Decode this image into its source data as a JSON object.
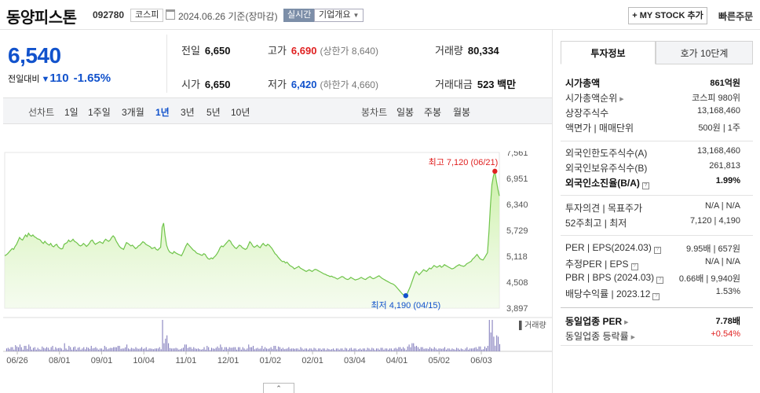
{
  "header": {
    "stock_name": "동양피스톤",
    "stock_code": "092780",
    "market": "코스피",
    "date": "2024.06.26 기준(장마감)",
    "realtime": "실시간",
    "company_overview": "기업개요",
    "mystock_label": "+ MY STOCK 추가",
    "quick_order": "빠른주문"
  },
  "price": {
    "current": "6,540",
    "change_label": "전일대비",
    "change_value": "110",
    "change_pct": "-1.65%",
    "prev_label": "전일",
    "prev": "6,650",
    "high_label": "고가",
    "high": "6,690",
    "upper_limit": "(상한가 8,640)",
    "volume_label": "거래량",
    "volume": "80,334",
    "open_label": "시가",
    "open": "6,650",
    "low_label": "저가",
    "low": "6,420",
    "lower_limit": "(하한가 4,660)",
    "amount_label": "거래대금",
    "amount": "523 백만"
  },
  "period_tabs": {
    "line_label": "선차트",
    "items": [
      "1일",
      "1주일",
      "3개월",
      "1년",
      "3년",
      "5년",
      "10년"
    ],
    "selected": "1년",
    "candle_label": "봉차트",
    "candle_items": [
      "일봉",
      "주봉",
      "월봉"
    ]
  },
  "chart_data": {
    "type": "area",
    "y_ticks": [
      "7,561",
      "6,951",
      "6,340",
      "5,729",
      "5,118",
      "4,508",
      "3,897"
    ],
    "ylim": [
      3897,
      7561
    ],
    "x_ticks": [
      "06/26",
      "08/01",
      "09/01",
      "10/04",
      "11/01",
      "12/01",
      "01/02",
      "02/01",
      "03/04",
      "04/01",
      "05/02",
      "06/03"
    ],
    "high_annotation": "최고 7,120 (06/21)",
    "low_annotation": "최저 4,190 (04/15)",
    "high_value": 7120,
    "low_value": 4190,
    "volume_label": "거래량",
    "values": [
      5130,
      5150,
      5180,
      5220,
      5260,
      5300,
      5280,
      5350,
      5400,
      5480,
      5560,
      5520,
      5500,
      5560,
      5620,
      5580,
      5660,
      5610,
      5590,
      5620,
      5580,
      5560,
      5530,
      5520,
      5500,
      5450,
      5420,
      5470,
      5430,
      5400,
      5380,
      5420,
      5360,
      5340,
      5380,
      5400,
      5340,
      5310,
      5290,
      5300,
      5400,
      5420,
      5440,
      5500,
      5460,
      5480,
      5520,
      5470,
      5450,
      5420,
      5380,
      5360,
      5380,
      5420,
      5390,
      5350,
      5380,
      5420,
      5480,
      5500,
      5440,
      5400,
      5420,
      5440,
      5460,
      5440,
      5420,
      5480,
      5520,
      5490,
      5470,
      5500,
      5560,
      5600,
      5560,
      5480,
      5420,
      5360,
      5320,
      5300,
      5280,
      5360,
      5440,
      5420,
      5390,
      5360,
      5380,
      5340,
      5300,
      5320,
      5360,
      5380,
      5420,
      5460,
      5440,
      5400,
      5380,
      5360,
      5340,
      5300,
      5310,
      5330,
      5280,
      5260,
      5300,
      5330,
      5800,
      5900,
      5600,
      5380,
      5280,
      5220,
      5200,
      5180,
      5230,
      5200,
      5180,
      5160,
      5150,
      5130,
      5200,
      5280,
      5360,
      5420,
      5380,
      5340,
      5300,
      5260,
      5240,
      5200,
      5180,
      5170,
      5150,
      5140,
      5180,
      5160,
      5100,
      5060,
      5050,
      5080,
      5060,
      5100,
      5130,
      5180,
      5240,
      5320,
      5360,
      5340,
      5380,
      5420,
      5460,
      5500,
      5470,
      5400,
      5360,
      5320,
      5300,
      5340,
      5380,
      5360,
      5320,
      5300,
      5280,
      5300,
      5380,
      5460,
      5420,
      5360,
      5330,
      5350,
      5380,
      5340,
      5320,
      5380,
      5420,
      5380,
      5360,
      5400,
      5380,
      5340,
      5300,
      5240,
      5180,
      5150,
      5100,
      5060,
      5020,
      4990,
      5000,
      4960,
      4980,
      4940,
      4900,
      4880,
      4860,
      4820,
      4840,
      4860,
      4880,
      4840,
      4820,
      4800,
      4780,
      4760,
      4780,
      4800,
      4780,
      4760,
      4790,
      4810,
      4800,
      4780,
      4760,
      4740,
      4720,
      4700,
      4690,
      4670,
      4660,
      4640,
      4650,
      4630,
      4620,
      4600,
      4580,
      4600,
      4620,
      4640,
      4630,
      4600,
      4580,
      4570,
      4590,
      4620,
      4600,
      4580,
      4560,
      4570,
      4580,
      4600,
      4620,
      4600,
      4580,
      4570,
      4600,
      4620,
      4640,
      4610,
      4590,
      4600,
      4620,
      4640,
      4660,
      4630,
      4600,
      4580,
      4560,
      4540,
      4520,
      4500,
      4480,
      4470,
      4450,
      4420,
      4380,
      4340,
      4300,
      4260,
      4220,
      4200,
      4190,
      4240,
      4320,
      4400,
      4500,
      4600,
      4700,
      4760,
      4720,
      4680,
      4720,
      4760,
      4800,
      4780,
      4760,
      4800,
      4840,
      4820,
      4860,
      4900,
      4880,
      4860,
      4880,
      4900,
      4860,
      4880,
      4920,
      4900,
      4880,
      4860,
      4840,
      4820,
      4830,
      4850,
      4880,
      4900,
      4920,
      4900,
      4890,
      4880,
      4900,
      4940,
      4960,
      4980,
      5000,
      5050,
      5080,
      5120,
      5160,
      5110,
      5060,
      5040,
      5030,
      5080,
      5140,
      5200,
      5700,
      6300,
      6800,
      7000,
      7120,
      6900,
      6700,
      6540
    ]
  },
  "right": {
    "tab_active": "투자정보",
    "tab_inactive": "호가 10단계",
    "mcap_label": "시가총액",
    "mcap": "861억원",
    "mcap_rank_label": "시가총액순위",
    "mcap_rank": "코스피 980위",
    "shares_label": "상장주식수",
    "shares": "13,168,460",
    "par_label": "액면가 | 매매단위",
    "par": "500원 | 1주",
    "foreign_limit_label": "외국인한도주식수(A)",
    "foreign_limit": "13,168,460",
    "foreign_hold_label": "외국인보유주식수(B)",
    "foreign_hold": "261,813",
    "foreign_ratio_label": "외국인소진율(B/A)",
    "foreign_ratio": "1.99%",
    "opinion_label": "투자의견 | 목표주가",
    "opinion": "N/A | N/A",
    "w52_label": "52주최고 | 최저",
    "w52": "7,120 | 4,190",
    "per_label": "PER | EPS(2024.03)",
    "per": "9.95배 | 657원",
    "est_per_label": "추정PER | EPS",
    "est_per": "N/A | N/A",
    "pbr_label": "PBR | BPS (2024.03)",
    "pbr": "0.66배 | 9,940원",
    "div_label": "배당수익률 | 2023.12",
    "div": "1.53%",
    "ind_per_label": "동일업종 PER",
    "ind_per": "7.78배",
    "ind_change_label": "동일업종 등락률",
    "ind_change": "+0.54%"
  }
}
